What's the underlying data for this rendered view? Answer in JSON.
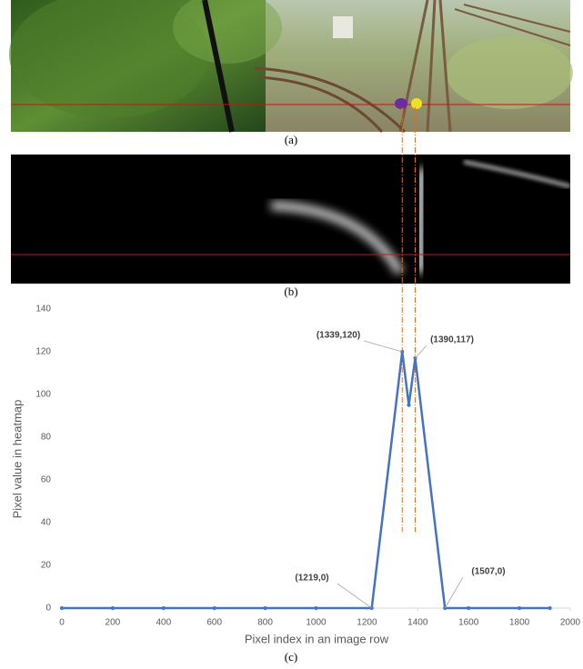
{
  "captions": [
    "(a)",
    "(b)",
    "(c)"
  ],
  "chart_data": {
    "type": "line",
    "x": [
      0,
      200,
      400,
      600,
      800,
      1000,
      1219,
      1339,
      1365,
      1390,
      1507,
      1600,
      1800,
      1920
    ],
    "values": [
      0,
      0,
      0,
      0,
      0,
      0,
      0,
      120,
      95,
      117,
      0,
      0,
      0,
      0
    ],
    "color": "#4472c4",
    "xlabel": "Pixel index in an image row",
    "ylabel": "Pixel value in heatmap",
    "xlim": [
      0,
      2000
    ],
    "xticks": [
      0,
      200,
      400,
      600,
      800,
      1000,
      1200,
      1400,
      1600,
      1800,
      2000
    ],
    "ylim": [
      0,
      140
    ],
    "yticks": [
      0,
      20,
      40,
      60,
      80,
      100,
      120,
      140
    ],
    "grid": false,
    "annotations": [
      "(1339,120)",
      "(1390,117)",
      "(1219,0)",
      "(1507,0)"
    ]
  }
}
